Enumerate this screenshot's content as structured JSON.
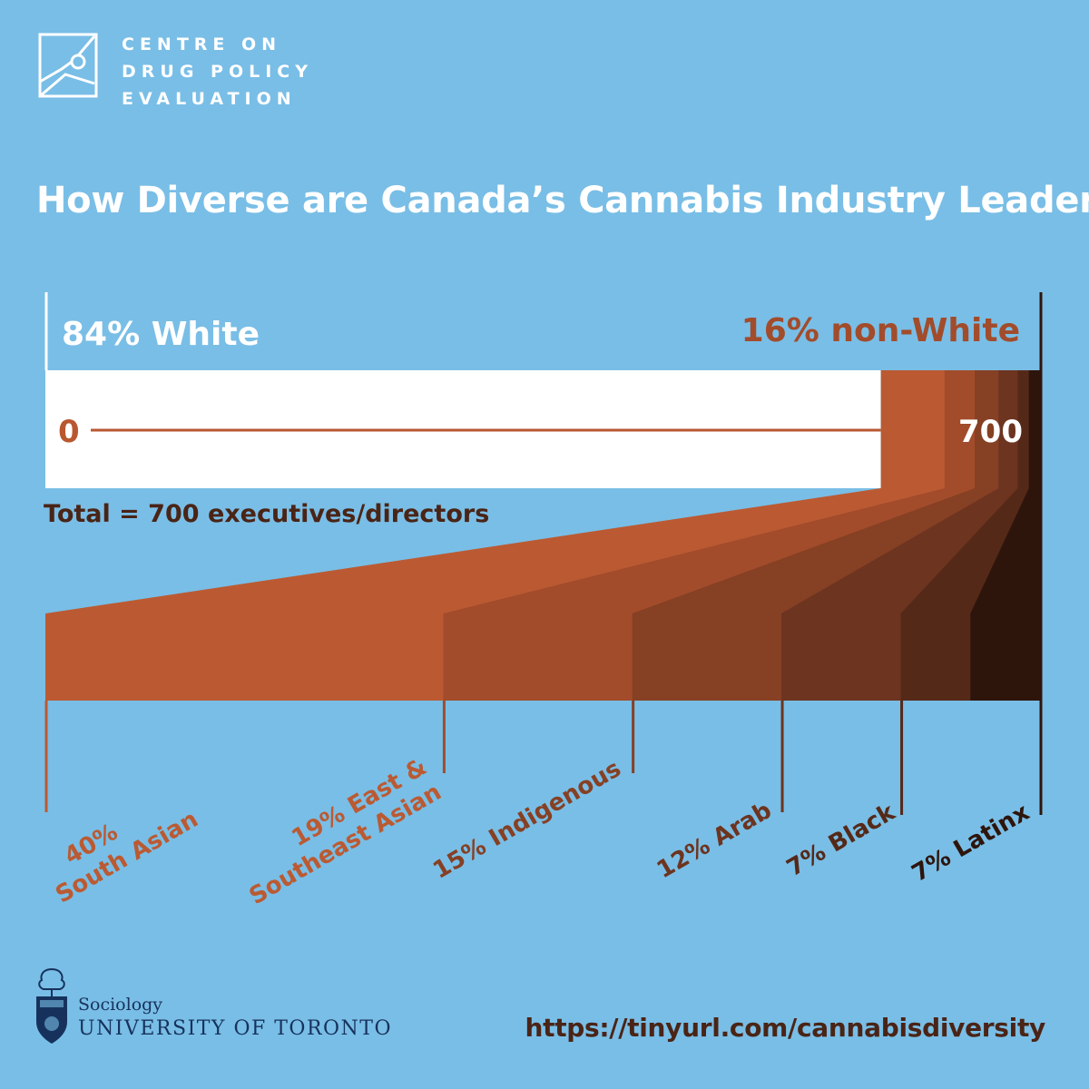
{
  "organization": {
    "line1": "CENTRE ON",
    "line2": "DRUG POLICY",
    "line3": "EVALUATION",
    "logo_icon": "line-graph-logo-icon"
  },
  "title": "How Diverse are Canada’s Cannabis Industry Leaders?",
  "colors": {
    "background": "#79bee6",
    "white_block": "#ffffff",
    "accent": "#b95731",
    "axis_end": "#a9d0ea",
    "dark_text": "#4a2416",
    "crest_blue": "#16325c"
  },
  "chart_data": {
    "type": "bar",
    "total": 700,
    "total_label": "Total = 700 executives/directors",
    "axis_start_label": "0",
    "axis_end_label": "700",
    "overall": [
      {
        "label": "84% White",
        "percent": 84
      },
      {
        "label": "16% non-White",
        "percent": 16
      }
    ],
    "breakdown": [
      {
        "line1": "40%",
        "line2": "South Asian",
        "percent": 40,
        "color": "#bb5a32"
      },
      {
        "line1": "19% East &",
        "line2": "Southeast Asian",
        "percent": 19,
        "color": "#a24c2b"
      },
      {
        "line1": "15% Indigenous",
        "line2": "",
        "percent": 15,
        "color": "#864024"
      },
      {
        "line1": "12% Arab",
        "line2": "",
        "percent": 12,
        "color": "#6d3420"
      },
      {
        "line1": "7% Black",
        "line2": "",
        "percent": 7,
        "color": "#552918"
      },
      {
        "line1": "7% Latinx",
        "line2": "",
        "percent": 7,
        "color": "#2e150c"
      }
    ]
  },
  "footer": {
    "department": "Sociology",
    "university": "UNIVERSITY OF TORONTO",
    "url": "https://tinyurl.com/cannabisdiversity",
    "crest_icon": "university-crest-icon"
  }
}
